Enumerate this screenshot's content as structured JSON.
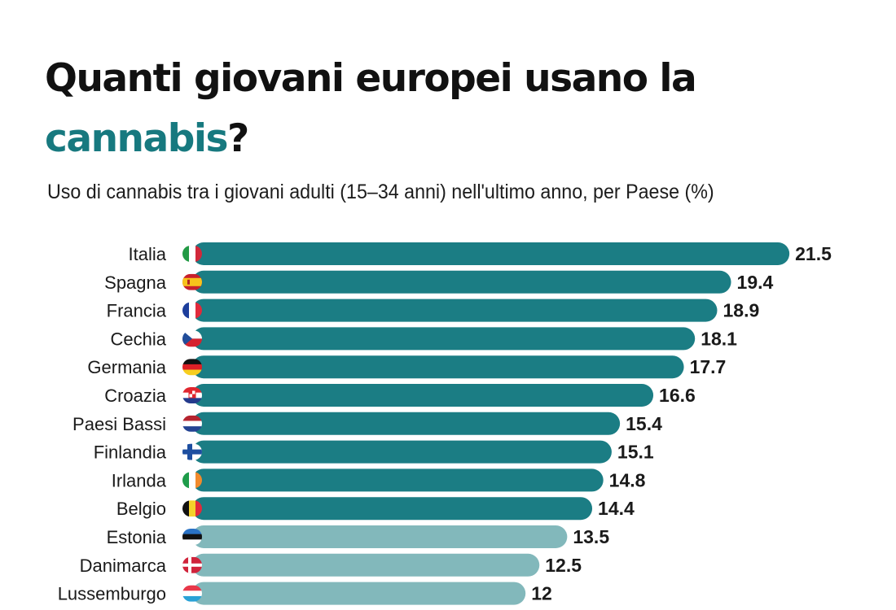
{
  "title_line1": "Quanti giovani europei usano la",
  "title_line2_accent": "cannabis",
  "title_line2_end": "?",
  "subtitle": "Uso di cannabis tra i giovani adulti (15–34 anni) nell'ultimo anno, per Paese (%)",
  "colors": {
    "accent": "#17797f",
    "bar_dark": "#1b7d84",
    "bar_light": "#82b8bb"
  },
  "chart_data": {
    "type": "bar",
    "orientation": "horizontal",
    "categories": [
      "Italia",
      "Spagna",
      "Francia",
      "Cechia",
      "Germania",
      "Croazia",
      "Paesi Bassi",
      "Finlandia",
      "Irlanda",
      "Belgio",
      "Estonia",
      "Danimarca",
      "Lussemburgo"
    ],
    "values": [
      21.5,
      19.4,
      18.9,
      18.1,
      17.7,
      16.6,
      15.4,
      15.1,
      14.8,
      14.4,
      13.5,
      12.5,
      12
    ],
    "value_labels": [
      "21.5",
      "19.4",
      "18.9",
      "18.1",
      "17.7",
      "16.6",
      "15.4",
      "15.1",
      "14.8",
      "14.4",
      "13.5",
      "12.5",
      "12"
    ],
    "flags": [
      "flag-italy",
      "flag-spain",
      "flag-france",
      "flag-czechia",
      "flag-germany",
      "flag-croatia",
      "flag-netherlands",
      "flag-finland",
      "flag-ireland",
      "flag-belgium",
      "flag-estonia",
      "flag-denmark",
      "flag-luxembourg"
    ],
    "highlight_count": 10,
    "grid": false
  }
}
